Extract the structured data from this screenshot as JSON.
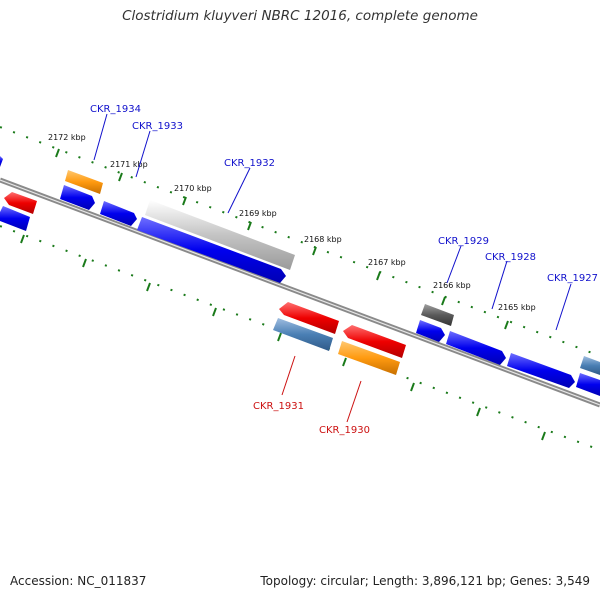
{
  "title": "Clostridium kluyveri NBRC 12016, complete genome",
  "footer": {
    "accession": "Accession: NC_011837",
    "topology": "Topology: circular; Length: 3,896,121 bp; Genes: 3,549"
  },
  "colors": {
    "forward_label": "#1111cc",
    "reverse_label": "#cc1111",
    "tick": "#1a7a1a",
    "backbone": "#808080"
  },
  "kbp_labels": [
    "2172 kbp",
    "2171 kbp",
    "2170 kbp",
    "2169 kbp",
    "2168 kbp",
    "2167 kbp",
    "2166 kbp",
    "2165 kbp"
  ],
  "gene_labels": {
    "ckr_1934": "CKR_1934",
    "ckr_1933": "CKR_1933",
    "ckr_1932": "CKR_1932",
    "ckr_1931": "CKR_1931",
    "ckr_1930": "CKR_1930",
    "ckr_1929": "CKR_1929",
    "ckr_1928": "CKR_1928",
    "ckr_1927": "CKR_1927"
  }
}
